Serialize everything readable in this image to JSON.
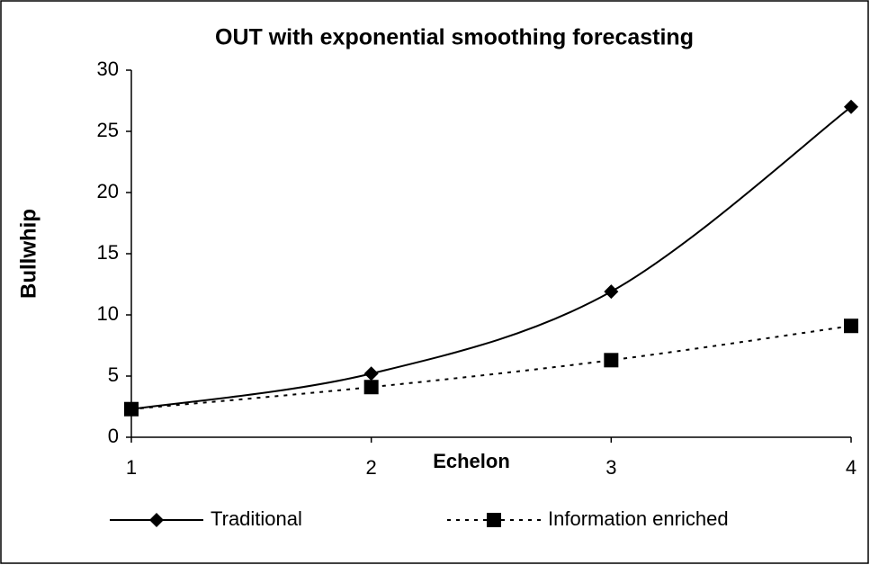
{
  "chart_data": {
    "type": "line",
    "title": "OUT with exponential smoothing forecasting",
    "xlabel": "Echelon",
    "ylabel": "Bullwhip",
    "x": [
      1,
      2,
      3,
      4
    ],
    "series": [
      {
        "name": "Traditional",
        "color": "#000000",
        "marker": "diamond",
        "dash": "solid",
        "values": [
          2.3,
          5.2,
          11.9,
          27
        ]
      },
      {
        "name": "Information enriched",
        "color": "#000000",
        "marker": "square",
        "dash": "dotted",
        "values": [
          2.3,
          4.1,
          6.3,
          9.1
        ]
      }
    ],
    "xlim": [
      1,
      4
    ],
    "xticks": [
      1,
      2,
      3,
      4
    ],
    "ylim": [
      0,
      30
    ],
    "yticks": [
      0,
      5,
      10,
      15,
      20,
      25,
      30
    ],
    "grid": false,
    "smooth": true,
    "legend": "bottom"
  }
}
